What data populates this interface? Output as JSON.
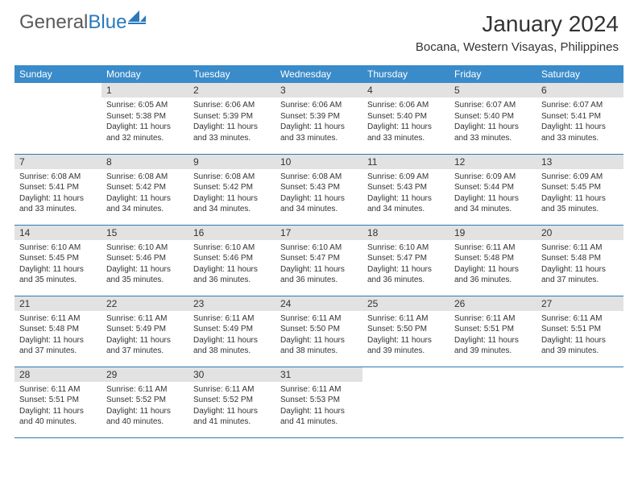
{
  "logo": {
    "text1": "General",
    "text2": "Blue"
  },
  "title": "January 2024",
  "location": "Bocana, Western Visayas, Philippines",
  "colors": {
    "header_bg": "#3a8bc9",
    "header_text": "#ffffff",
    "daynum_bg": "#e2e2e2",
    "row_border": "#2a79ba",
    "body_text": "#333333",
    "logo_gray": "#5a5a5a",
    "logo_blue": "#2a79ba"
  },
  "weekdays": [
    "Sunday",
    "Monday",
    "Tuesday",
    "Wednesday",
    "Thursday",
    "Friday",
    "Saturday"
  ],
  "weeks": [
    [
      {
        "day": "",
        "sunrise": "",
        "sunset": "",
        "daylight": ""
      },
      {
        "day": "1",
        "sunrise": "Sunrise: 6:05 AM",
        "sunset": "Sunset: 5:38 PM",
        "daylight": "Daylight: 11 hours and 32 minutes."
      },
      {
        "day": "2",
        "sunrise": "Sunrise: 6:06 AM",
        "sunset": "Sunset: 5:39 PM",
        "daylight": "Daylight: 11 hours and 33 minutes."
      },
      {
        "day": "3",
        "sunrise": "Sunrise: 6:06 AM",
        "sunset": "Sunset: 5:39 PM",
        "daylight": "Daylight: 11 hours and 33 minutes."
      },
      {
        "day": "4",
        "sunrise": "Sunrise: 6:06 AM",
        "sunset": "Sunset: 5:40 PM",
        "daylight": "Daylight: 11 hours and 33 minutes."
      },
      {
        "day": "5",
        "sunrise": "Sunrise: 6:07 AM",
        "sunset": "Sunset: 5:40 PM",
        "daylight": "Daylight: 11 hours and 33 minutes."
      },
      {
        "day": "6",
        "sunrise": "Sunrise: 6:07 AM",
        "sunset": "Sunset: 5:41 PM",
        "daylight": "Daylight: 11 hours and 33 minutes."
      }
    ],
    [
      {
        "day": "7",
        "sunrise": "Sunrise: 6:08 AM",
        "sunset": "Sunset: 5:41 PM",
        "daylight": "Daylight: 11 hours and 33 minutes."
      },
      {
        "day": "8",
        "sunrise": "Sunrise: 6:08 AM",
        "sunset": "Sunset: 5:42 PM",
        "daylight": "Daylight: 11 hours and 34 minutes."
      },
      {
        "day": "9",
        "sunrise": "Sunrise: 6:08 AM",
        "sunset": "Sunset: 5:42 PM",
        "daylight": "Daylight: 11 hours and 34 minutes."
      },
      {
        "day": "10",
        "sunrise": "Sunrise: 6:08 AM",
        "sunset": "Sunset: 5:43 PM",
        "daylight": "Daylight: 11 hours and 34 minutes."
      },
      {
        "day": "11",
        "sunrise": "Sunrise: 6:09 AM",
        "sunset": "Sunset: 5:43 PM",
        "daylight": "Daylight: 11 hours and 34 minutes."
      },
      {
        "day": "12",
        "sunrise": "Sunrise: 6:09 AM",
        "sunset": "Sunset: 5:44 PM",
        "daylight": "Daylight: 11 hours and 34 minutes."
      },
      {
        "day": "13",
        "sunrise": "Sunrise: 6:09 AM",
        "sunset": "Sunset: 5:45 PM",
        "daylight": "Daylight: 11 hours and 35 minutes."
      }
    ],
    [
      {
        "day": "14",
        "sunrise": "Sunrise: 6:10 AM",
        "sunset": "Sunset: 5:45 PM",
        "daylight": "Daylight: 11 hours and 35 minutes."
      },
      {
        "day": "15",
        "sunrise": "Sunrise: 6:10 AM",
        "sunset": "Sunset: 5:46 PM",
        "daylight": "Daylight: 11 hours and 35 minutes."
      },
      {
        "day": "16",
        "sunrise": "Sunrise: 6:10 AM",
        "sunset": "Sunset: 5:46 PM",
        "daylight": "Daylight: 11 hours and 36 minutes."
      },
      {
        "day": "17",
        "sunrise": "Sunrise: 6:10 AM",
        "sunset": "Sunset: 5:47 PM",
        "daylight": "Daylight: 11 hours and 36 minutes."
      },
      {
        "day": "18",
        "sunrise": "Sunrise: 6:10 AM",
        "sunset": "Sunset: 5:47 PM",
        "daylight": "Daylight: 11 hours and 36 minutes."
      },
      {
        "day": "19",
        "sunrise": "Sunrise: 6:11 AM",
        "sunset": "Sunset: 5:48 PM",
        "daylight": "Daylight: 11 hours and 36 minutes."
      },
      {
        "day": "20",
        "sunrise": "Sunrise: 6:11 AM",
        "sunset": "Sunset: 5:48 PM",
        "daylight": "Daylight: 11 hours and 37 minutes."
      }
    ],
    [
      {
        "day": "21",
        "sunrise": "Sunrise: 6:11 AM",
        "sunset": "Sunset: 5:48 PM",
        "daylight": "Daylight: 11 hours and 37 minutes."
      },
      {
        "day": "22",
        "sunrise": "Sunrise: 6:11 AM",
        "sunset": "Sunset: 5:49 PM",
        "daylight": "Daylight: 11 hours and 37 minutes."
      },
      {
        "day": "23",
        "sunrise": "Sunrise: 6:11 AM",
        "sunset": "Sunset: 5:49 PM",
        "daylight": "Daylight: 11 hours and 38 minutes."
      },
      {
        "day": "24",
        "sunrise": "Sunrise: 6:11 AM",
        "sunset": "Sunset: 5:50 PM",
        "daylight": "Daylight: 11 hours and 38 minutes."
      },
      {
        "day": "25",
        "sunrise": "Sunrise: 6:11 AM",
        "sunset": "Sunset: 5:50 PM",
        "daylight": "Daylight: 11 hours and 39 minutes."
      },
      {
        "day": "26",
        "sunrise": "Sunrise: 6:11 AM",
        "sunset": "Sunset: 5:51 PM",
        "daylight": "Daylight: 11 hours and 39 minutes."
      },
      {
        "day": "27",
        "sunrise": "Sunrise: 6:11 AM",
        "sunset": "Sunset: 5:51 PM",
        "daylight": "Daylight: 11 hours and 39 minutes."
      }
    ],
    [
      {
        "day": "28",
        "sunrise": "Sunrise: 6:11 AM",
        "sunset": "Sunset: 5:51 PM",
        "daylight": "Daylight: 11 hours and 40 minutes."
      },
      {
        "day": "29",
        "sunrise": "Sunrise: 6:11 AM",
        "sunset": "Sunset: 5:52 PM",
        "daylight": "Daylight: 11 hours and 40 minutes."
      },
      {
        "day": "30",
        "sunrise": "Sunrise: 6:11 AM",
        "sunset": "Sunset: 5:52 PM",
        "daylight": "Daylight: 11 hours and 41 minutes."
      },
      {
        "day": "31",
        "sunrise": "Sunrise: 6:11 AM",
        "sunset": "Sunset: 5:53 PM",
        "daylight": "Daylight: 11 hours and 41 minutes."
      },
      {
        "day": "",
        "sunrise": "",
        "sunset": "",
        "daylight": ""
      },
      {
        "day": "",
        "sunrise": "",
        "sunset": "",
        "daylight": ""
      },
      {
        "day": "",
        "sunrise": "",
        "sunset": "",
        "daylight": ""
      }
    ]
  ]
}
